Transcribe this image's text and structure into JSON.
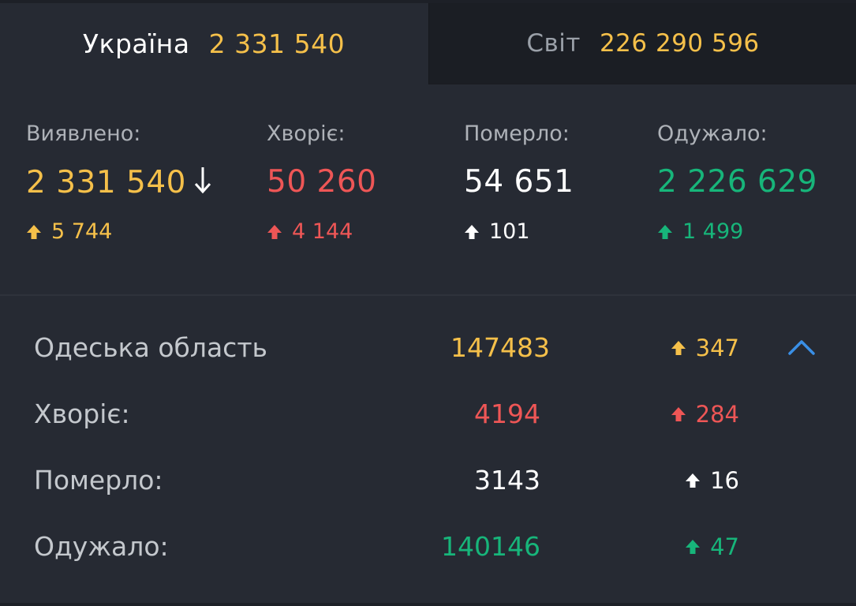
{
  "tabs": {
    "ukraine": {
      "label": "Україна",
      "value": "2 331 540"
    },
    "world": {
      "label": "Світ",
      "value": "226 290 596"
    }
  },
  "stats": {
    "detected": {
      "label": "Виявлено:",
      "value": "2 331 540",
      "delta": "5 744",
      "sort_icon": "sort-down-arrow-icon"
    },
    "sick": {
      "label": "Хворіє:",
      "value": "50 260",
      "delta": "4 144"
    },
    "died": {
      "label": "Померло:",
      "value": "54 651",
      "delta": "101"
    },
    "recovered": {
      "label": "Одужало:",
      "value": "2 226 629",
      "delta": "1 499"
    }
  },
  "region": {
    "name": "Одеська область",
    "total": "147483",
    "total_delta": "347",
    "rows": [
      {
        "label": "Хворіє:",
        "value": "4194",
        "delta": "284"
      },
      {
        "label": "Померло:",
        "value": "3143",
        "delta": "16"
      },
      {
        "label": "Одужало:",
        "value": "140146",
        "delta": "47"
      }
    ],
    "collapse_icon": "chevron-up-icon"
  },
  "colors": {
    "yellow": "#f5c04a",
    "red": "#ee5656",
    "white": "#ffffff",
    "green": "#17b57a",
    "blue": "#3a8fe6",
    "background": "#262a33"
  }
}
